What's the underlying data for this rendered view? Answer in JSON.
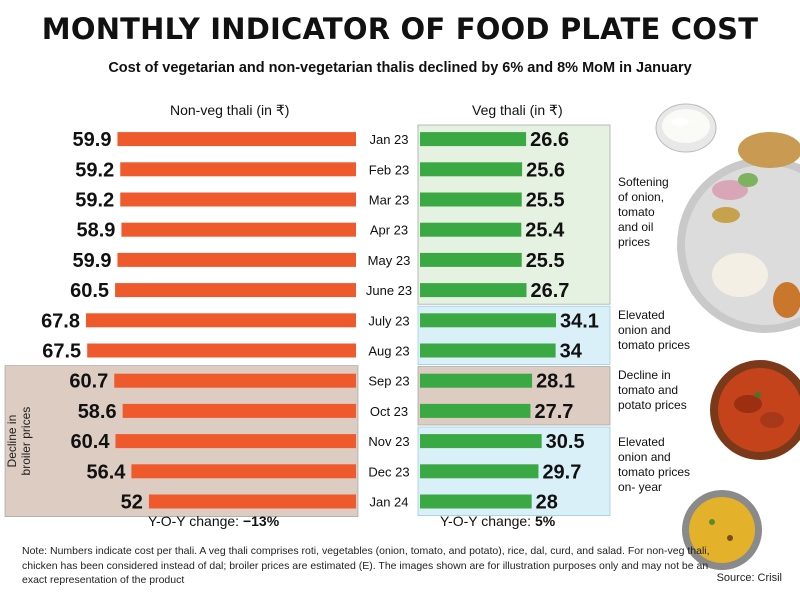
{
  "title": "MONTHLY INDICATOR OF FOOD PLATE COST",
  "subtitle": "Cost of vegetarian and non-vegetarian thalis declined by 6% and 8% MoM in January",
  "colors": {
    "nonveg_bar": "#ee5a2c",
    "veg_bar": "#3aa843",
    "green_band": "#e6f2e1",
    "blue_band": "#daf0f8",
    "brown_band": "#dcccc2",
    "band_border": "#9ecfe0"
  },
  "chart_data": [
    {
      "type": "bar",
      "orientation": "horizontal",
      "direction": "right-to-left",
      "header": "Non-veg thali (in ₹)",
      "categories": [
        "Jan 23",
        "Feb 23",
        "Mar 23",
        "Apr 23",
        "May 23",
        "June 23",
        "July 23",
        "Aug 23",
        "Sep 23",
        "Oct 23",
        "Nov 23",
        "Dec 23",
        "Jan 24"
      ],
      "values": [
        59.9,
        59.2,
        59.2,
        58.9,
        59.9,
        60.5,
        67.8,
        67.5,
        60.7,
        58.6,
        60.4,
        56.4,
        52
      ],
      "value_labels": [
        "59.9",
        "59.2",
        "59.2",
        "58.9",
        "59.9",
        "60.5",
        "67.8",
        "67.5",
        "60.7",
        "58.6",
        "60.4",
        "56.4",
        "52"
      ],
      "xlim": [
        0,
        70
      ],
      "yoy_label": "Y-O-Y change:",
      "yoy_value": "−13%",
      "bands": [
        {
          "from": "Sep 23",
          "to": "Jan 24",
          "color": "brown",
          "label_line1": "Decline in",
          "label_line2": "broiler prices"
        }
      ]
    },
    {
      "type": "bar",
      "orientation": "horizontal",
      "direction": "left-to-right",
      "header": "Veg thali (in ₹)",
      "categories": [
        "Jan 23",
        "Feb 23",
        "Mar 23",
        "Apr 23",
        "May 23",
        "June 23",
        "July 23",
        "Aug 23",
        "Sep 23",
        "Oct 23",
        "Nov 23",
        "Dec 23",
        "Jan 24"
      ],
      "values": [
        26.6,
        25.6,
        25.5,
        25.4,
        25.5,
        26.7,
        34.1,
        34,
        28.1,
        27.7,
        30.5,
        29.7,
        28
      ],
      "value_labels": [
        "26.6",
        "25.6",
        "25.5",
        "25.4",
        "25.5",
        "26.7",
        "34.1",
        "34",
        "28.1",
        "27.7",
        "30.5",
        "29.7",
        "28"
      ],
      "xlim": [
        0,
        40
      ],
      "yoy_label": "Y-O-Y change:",
      "yoy_value": "5%",
      "bands": [
        {
          "from": "Jan 23",
          "to": "June 23",
          "color": "green",
          "annotation": [
            "Softening",
            "of onion,",
            "tomato",
            "and oil",
            "prices"
          ]
        },
        {
          "from": "July 23",
          "to": "Aug 23",
          "color": "blue",
          "annotation": [
            "Elevated",
            "onion and",
            "tomato prices"
          ]
        },
        {
          "from": "Sep 23",
          "to": "Oct 23",
          "color": "brown",
          "annotation": [
            "Decline in",
            "tomato and",
            "potato prices"
          ]
        },
        {
          "from": "Nov 23",
          "to": "Jan 24",
          "color": "blue",
          "annotation": [
            "Elevated",
            "onion and",
            "tomato prices",
            "on- year"
          ]
        }
      ]
    }
  ],
  "note": "Note: Numbers indicate cost per thali. A veg thali comprises roti, vegetables (onion, tomato, and potato), rice, dal, curd, and salad. For non-veg thali, chicken has been considered instead of dal; broiler prices are estimated (E). The images shown are for illustration purposes only and may not be an exact representation of the product",
  "source": "Source: Crisil",
  "images": [
    "curd-bowl-icon",
    "thali-plate-icon",
    "chicken-curry-icon",
    "dal-bowl-icon"
  ]
}
